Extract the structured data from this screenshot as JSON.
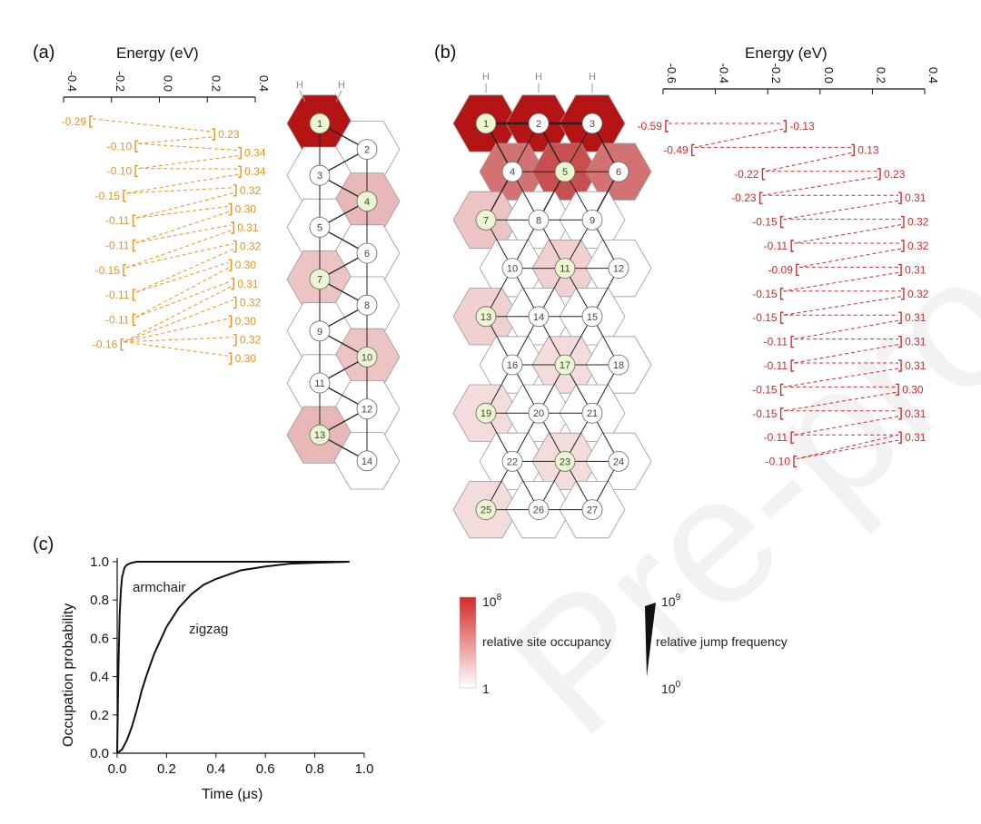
{
  "panel_labels": {
    "a": "(a)",
    "b": "(b)",
    "c": "(c)"
  },
  "hydrogen_label": "H",
  "panel_a": {
    "energy_axis": {
      "title": "Energy (eV)",
      "ticks": [
        "-0.4",
        "-0.2",
        "0.0",
        "0.2",
        "0.4"
      ],
      "tick_values": [
        -0.4,
        -0.2,
        0.0,
        0.2,
        0.4
      ],
      "range": [
        -0.4,
        0.4
      ]
    },
    "highlight_color": "#e8931f",
    "energy_levels": [
      {
        "left": "-0.29",
        "right": "0.23"
      },
      {
        "left": "-0.10",
        "right": "0.34"
      },
      {
        "left": "-0.10",
        "right": "0.34"
      },
      {
        "left": "-0.15",
        "right": "0.32"
      },
      {
        "left": "-0.11",
        "right": "0.30"
      },
      {
        "left": "-0.11",
        "right": "0.31"
      },
      {
        "left": "-0.15",
        "right": "0.32"
      },
      {
        "left": "-0.11",
        "right": "0.30"
      },
      {
        "left": "-0.11",
        "right": "0.31"
      },
      {
        "left": "-0.16",
        "right": "0.32"
      },
      {
        "left": "",
        "right": "0.30"
      },
      {
        "left": "",
        "right": "0.32"
      },
      {
        "left": "",
        "right": "0.30"
      }
    ],
    "sites": [
      "1",
      "2",
      "3",
      "4",
      "5",
      "6",
      "7",
      "8",
      "9",
      "10",
      "11",
      "12",
      "13",
      "14"
    ],
    "green_sites": [
      "1",
      "4",
      "7",
      "10",
      "13"
    ]
  },
  "panel_b": {
    "energy_axis": {
      "title": "Energy (eV)",
      "ticks": [
        "-0.6",
        "-0.4",
        "-0.2",
        "0.0",
        "0.2",
        "0.4"
      ],
      "tick_values": [
        -0.6,
        -0.4,
        -0.2,
        0.0,
        0.2,
        0.4
      ],
      "range": [
        -0.6,
        0.4
      ]
    },
    "highlight_color": "#d42a2a",
    "energy_levels": [
      {
        "left": "-0.59",
        "right": "-0.13"
      },
      {
        "left": "-0.49",
        "right": "0.13"
      },
      {
        "left": "-0.22",
        "right": "0.23"
      },
      {
        "left": "-0.23",
        "right": "0.31"
      },
      {
        "left": "-0.15",
        "right": "0.32"
      },
      {
        "left": "-0.11",
        "right": "0.32"
      },
      {
        "left": "-0.09",
        "right": "0.31"
      },
      {
        "left": "-0.15",
        "right": "0.32"
      },
      {
        "left": "-0.15",
        "right": "0.31"
      },
      {
        "left": "-0.11",
        "right": "0.31"
      },
      {
        "left": "-0.11",
        "right": "0.31"
      },
      {
        "left": "-0.15",
        "right": "0.30"
      },
      {
        "left": "-0.15",
        "right": "0.31"
      },
      {
        "left": "-0.11",
        "right": "0.31"
      },
      {
        "left": "-0.10",
        "right": ""
      }
    ],
    "sites": [
      "1",
      "2",
      "3",
      "4",
      "5",
      "6",
      "7",
      "8",
      "9",
      "10",
      "11",
      "12",
      "13",
      "14",
      "15",
      "16",
      "17",
      "18",
      "19",
      "20",
      "21",
      "22",
      "23",
      "24",
      "25",
      "26",
      "27"
    ],
    "green_sites": [
      "1",
      "5",
      "7",
      "11",
      "13",
      "17",
      "19",
      "23",
      "25"
    ]
  },
  "legend": {
    "occupancy_label": "relative site occupancy",
    "occupancy_max": "10",
    "occupancy_max_exp": "8",
    "occupancy_min": "1",
    "jump_label": "relative jump frequency",
    "jump_max": "10",
    "jump_max_exp": "9",
    "jump_min": "10",
    "jump_min_exp": "0",
    "colors": {
      "high": "#d42a2a",
      "low": "#ffffff"
    }
  },
  "chart_data": {
    "type": "line",
    "xlabel": "Time (μs)",
    "ylabel": "Occupation  probability",
    "xlim": [
      0.0,
      1.0
    ],
    "ylim": [
      0.0,
      1.0
    ],
    "xticks": [
      "0.0",
      "0.2",
      "0.4",
      "0.6",
      "0.8",
      "1.0"
    ],
    "xtick_values": [
      0.0,
      0.2,
      0.4,
      0.6,
      0.8,
      1.0
    ],
    "yticks": [
      "0.0",
      "0.2",
      "0.4",
      "0.6",
      "0.8",
      "1.0"
    ],
    "ytick_values": [
      0.0,
      0.2,
      0.4,
      0.6,
      0.8,
      1.0
    ],
    "series": [
      {
        "name": "armchair",
        "x": [
          0.0,
          0.005,
          0.01,
          0.015,
          0.02,
          0.03,
          0.04,
          0.06,
          0.08,
          0.1,
          0.15,
          0.2,
          0.4,
          0.94
        ],
        "y": [
          0.0,
          0.45,
          0.72,
          0.85,
          0.92,
          0.97,
          0.985,
          0.995,
          1.0,
          1.0,
          1.0,
          1.0,
          1.0,
          1.0
        ]
      },
      {
        "name": "zigzag",
        "x": [
          0.0,
          0.02,
          0.04,
          0.06,
          0.08,
          0.1,
          0.12,
          0.15,
          0.2,
          0.25,
          0.3,
          0.35,
          0.4,
          0.5,
          0.6,
          0.7,
          0.8,
          0.94
        ],
        "y": [
          0.0,
          0.02,
          0.07,
          0.14,
          0.23,
          0.33,
          0.41,
          0.52,
          0.66,
          0.76,
          0.83,
          0.88,
          0.91,
          0.955,
          0.975,
          0.99,
          0.995,
          1.0
        ]
      }
    ],
    "grid": false,
    "line_color": "#111111"
  },
  "watermark": "Pre-proofs"
}
